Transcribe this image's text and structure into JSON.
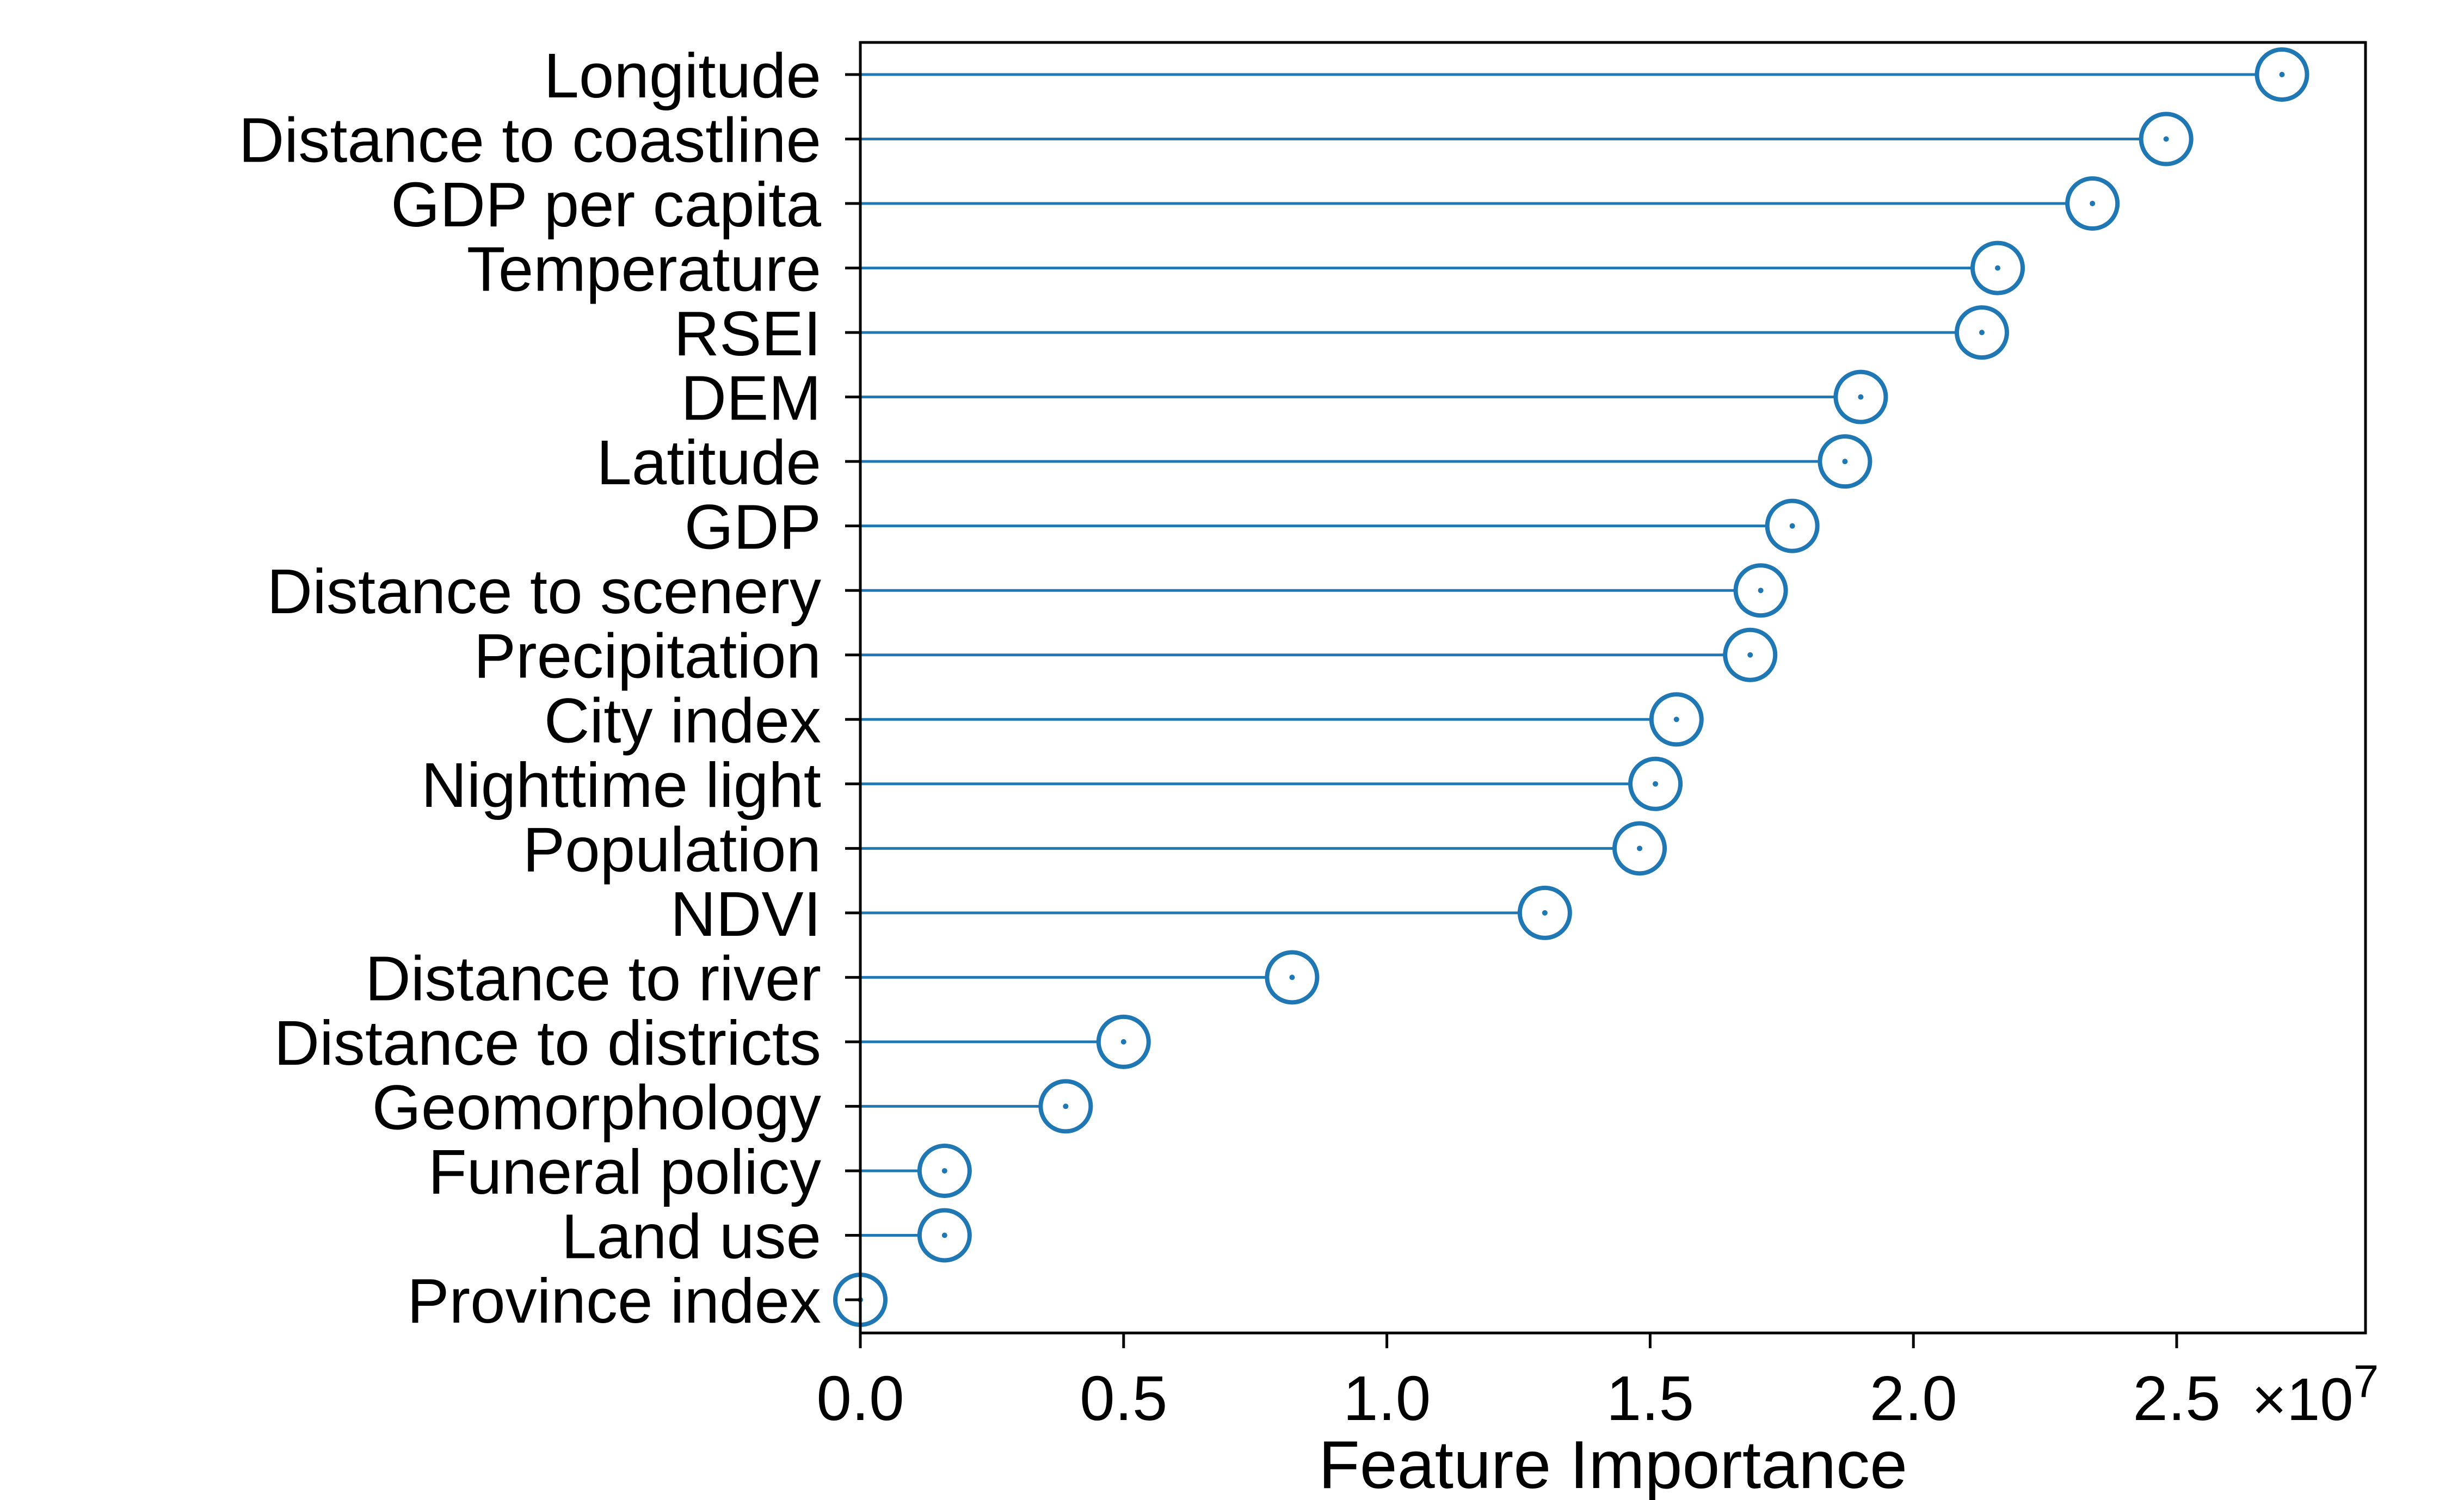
{
  "chart_data": {
    "type": "lollipop",
    "xlabel": "Feature Importance",
    "ylabel": "",
    "xlim": [
      0,
      2.9
    ],
    "x_exponent_label": "×10",
    "x_exponent_power": "7",
    "x_ticks": [
      "0.0",
      "0.5",
      "1.0",
      "1.5",
      "2.0",
      "2.5"
    ],
    "x_tick_values": [
      0.0,
      0.5,
      1.0,
      1.5,
      2.0,
      2.5
    ],
    "categories": [
      "Longitude",
      "Distance to coastline",
      "GDP per capita",
      "Temperature",
      "RSEI",
      "DEM",
      "Latitude",
      "GDP",
      "Distance to scenery",
      "Precipitation",
      "City index",
      "Nighttime light",
      "Population",
      "NDVI",
      "Distance to river",
      "Distance to districts",
      "Geomorphology",
      "Funeral policy",
      "Land use",
      "Province index"
    ],
    "values": [
      2.7,
      2.48,
      2.34,
      2.16,
      2.13,
      1.9,
      1.87,
      1.77,
      1.71,
      1.69,
      1.55,
      1.51,
      1.48,
      1.3,
      0.82,
      0.5,
      0.39,
      0.16,
      0.16,
      0.0
    ],
    "grid": false,
    "legend": "none",
    "color": "#1f77b4"
  }
}
